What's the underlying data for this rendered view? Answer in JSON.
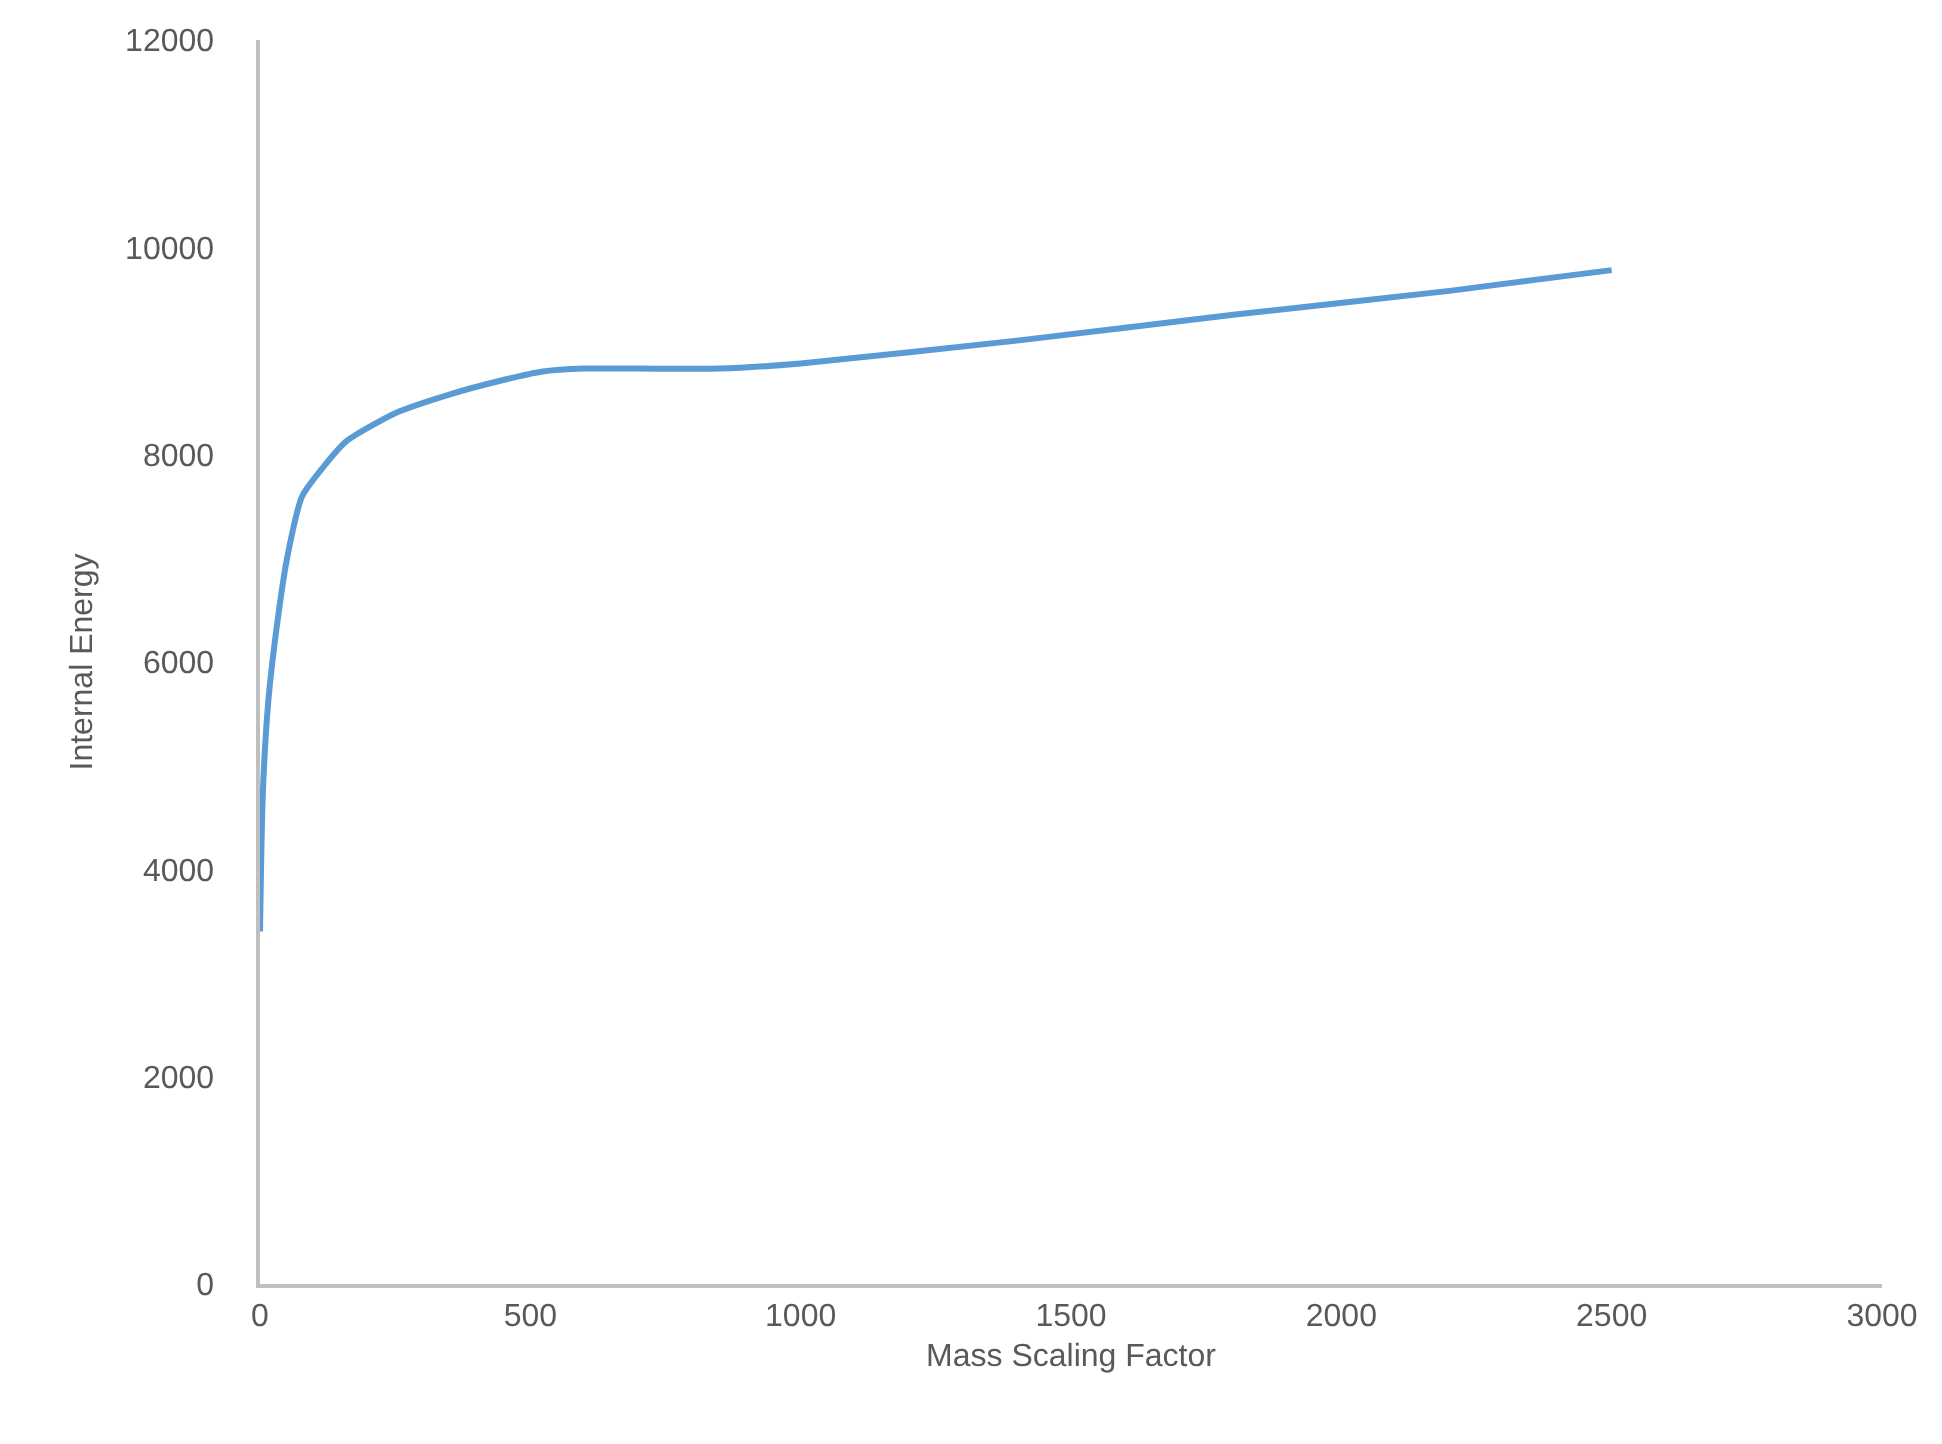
{
  "chart_data": {
    "type": "line",
    "xlabel": "Mass Scaling Factor",
    "ylabel": "Internal Energy",
    "x": [
      0,
      5,
      15,
      30,
      50,
      78,
      120,
      160,
      250,
      350,
      450,
      520,
      600,
      700,
      850,
      1000,
      1400,
      1800,
      2200,
      2500
    ],
    "series": [
      {
        "color": "#5b9bd5",
        "values": [
          3400,
          4700,
          5600,
          6300,
          7000,
          7600,
          7900,
          8130,
          8400,
          8580,
          8720,
          8800,
          8830,
          8830,
          8830,
          8880,
          9100,
          9350,
          9580,
          9780
        ]
      }
    ],
    "xlim": [
      0,
      3000
    ],
    "xticks": [
      0,
      500,
      1000,
      1500,
      2000,
      2500,
      3000
    ],
    "ylim": [
      0,
      12000
    ],
    "yticks": [
      0,
      2000,
      4000,
      6000,
      8000,
      10000,
      12000
    ],
    "grid": false,
    "marker": "none",
    "line_style": "solid"
  }
}
